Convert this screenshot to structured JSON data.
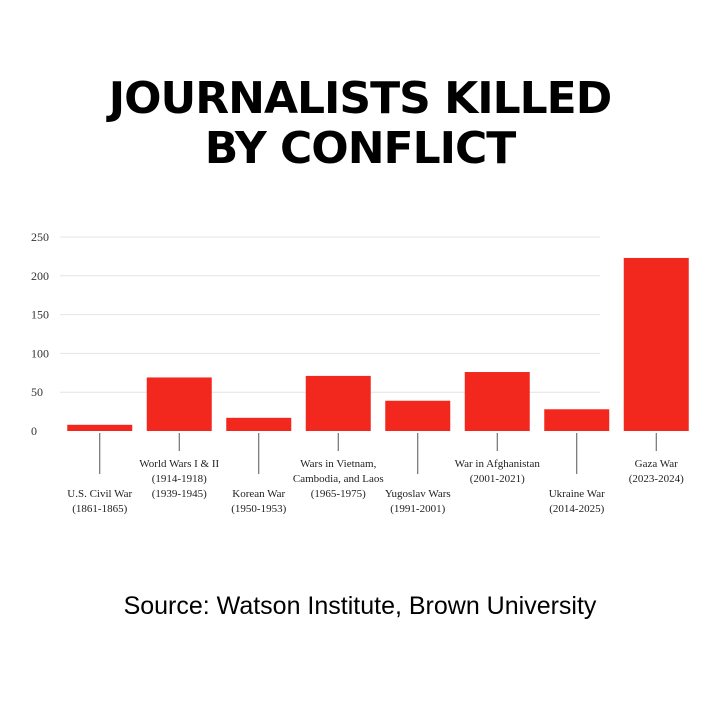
{
  "title_lines": [
    "JOURNALISTS KILLED",
    "BY CONFLICT"
  ],
  "source": "Source: Watson Institute, Brown University",
  "colors": {
    "bar": "#f2281e",
    "grid": "#e4e4e4",
    "leader": "#555555"
  },
  "chart_data": {
    "type": "bar",
    "title": "JOURNALISTS KILLED BY CONFLICT",
    "ylim": [
      0,
      250
    ],
    "yticks": [
      0,
      50,
      100,
      150,
      200,
      250
    ],
    "grid": true,
    "categories": [
      {
        "lines": [
          "U.S. Civil War",
          "(1861-1865)"
        ],
        "label_pos": "low"
      },
      {
        "lines": [
          "World Wars I & II",
          "(1914-1918)",
          "(1939-1945)"
        ],
        "label_pos": "high"
      },
      {
        "lines": [
          "Korean War",
          "(1950-1953)"
        ],
        "label_pos": "low"
      },
      {
        "lines": [
          "Wars in Vietnam,",
          "Cambodia, and Laos",
          "(1965-1975)"
        ],
        "label_pos": "high"
      },
      {
        "lines": [
          "Yugoslav Wars",
          "(1991-2001)"
        ],
        "label_pos": "low"
      },
      {
        "lines": [
          "War in Afghanistan",
          "(2001-2021)"
        ],
        "label_pos": "high"
      },
      {
        "lines": [
          "Ukraine War",
          "(2014-2025)"
        ],
        "label_pos": "low"
      },
      {
        "lines": [
          "Gaza War",
          "(2023-2024)"
        ],
        "label_pos": "high"
      }
    ],
    "values": [
      8,
      69,
      17,
      71,
      39,
      76,
      28,
      223
    ]
  }
}
